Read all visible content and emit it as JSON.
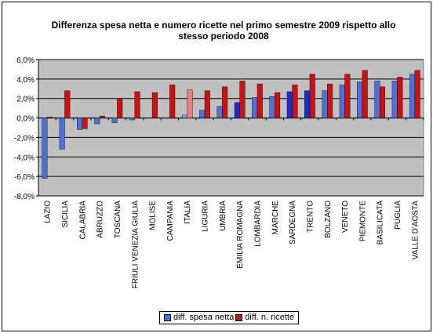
{
  "chart_data": {
    "type": "bar",
    "title_line1": "Differenza spesa netta e numero ricette nel primo semestre 2009 rispetto allo",
    "title_line2": "stesso periodo 2008",
    "categories": [
      "LAZIO",
      "SICILIA",
      "CALABRIA",
      "ABRUZZO",
      "TOSCANA",
      "FRIULI VENEZIA GIULIA",
      "MOLISE",
      "CAMPANIA",
      "ITALIA",
      "LIGURIA",
      "UMBRIA",
      "EMILIA ROMAGNA",
      "LOMBARDIA",
      "MARCHE",
      "SARDEGNA",
      "TRENTO",
      "BOLZANO",
      "VENETO",
      "PIEMONTE",
      "BASILICATA",
      "PUGLIA",
      "VALLE D'AOSTA"
    ],
    "series": [
      {
        "name": "diff. spesa netta",
        "color": "#4F6FD9",
        "values": [
          -6.2,
          -3.2,
          -1.2,
          -0.6,
          -0.5,
          -0.2,
          0.0,
          0.0,
          0.3,
          0.8,
          1.2,
          1.6,
          2.1,
          2.2,
          2.7,
          2.8,
          2.8,
          3.4,
          3.7,
          3.8,
          3.8,
          4.5
        ]
      },
      {
        "name": "diff. n. ricette",
        "color": "#CC1111",
        "values": [
          0.1,
          2.8,
          -1.1,
          0.2,
          2.0,
          2.7,
          2.6,
          3.4,
          2.9,
          2.8,
          3.2,
          3.8,
          3.5,
          2.6,
          3.4,
          4.5,
          3.5,
          4.5,
          4.9,
          3.2,
          4.2,
          4.9
        ]
      }
    ],
    "highlight": {
      "category": "ITALIA",
      "colors": [
        "#7AA3E8",
        "#F08080"
      ]
    },
    "dark_blue_categories": [
      "EMILIA ROMAGNA",
      "SARDEGNA",
      "TRENTO"
    ],
    "dark_blue_color": "#1E2ACB",
    "yticks": [
      "6,0%",
      "4,0%",
      "2,0%",
      "0,0%",
      "-2,0%",
      "-4,0%",
      "-6,0%",
      "-8,0%"
    ],
    "ylim": [
      -8,
      6
    ],
    "plot_background": "#C0C0C0",
    "grid": true,
    "legend_position": "bottom"
  }
}
